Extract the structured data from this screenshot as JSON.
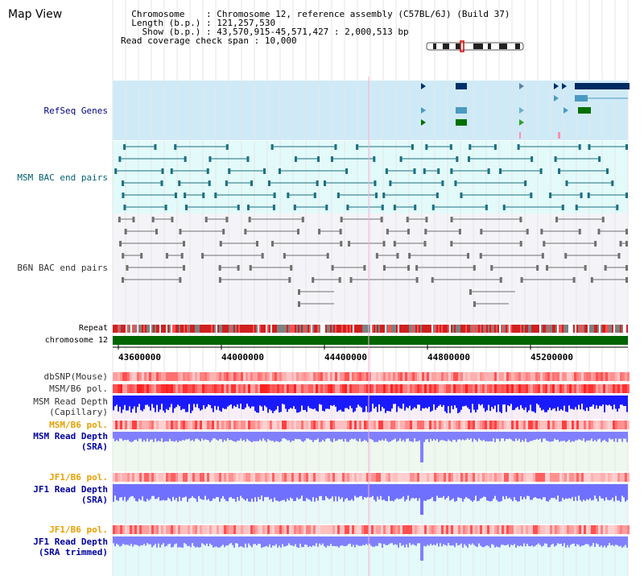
{
  "page": {
    "title": "Map View"
  },
  "header": {
    "chromosome_label": "Chromosome",
    "chromosome_value": "Chromosome 12, reference assembly (C57BL/6J) (Build 37)",
    "length_label": "Length (b.p.)",
    "length_value": "121,257,530",
    "show_label": "Show (b.p.)",
    "show_value": "43,570,915-45,571,427 : 2,000,513 bp",
    "coverage_label": "Read coverage check span",
    "coverage_value": "10,000"
  },
  "tracks": {
    "refseq": "RefSeq Genes",
    "msm_bac": "MSM BAC end pairs",
    "b6n_bac": "B6N BAC end pairs",
    "repeat": "Repeat",
    "chromosome": "chromosome 12",
    "dbsnp": "dbSNP(Mouse)",
    "msm_b6_pol_1": "MSM/B6 pol.",
    "msm_read_depth_cap_1": "MSM Read Depth",
    "msm_read_depth_cap_2": "(Capillary)",
    "msm_b6_pol_2": "MSM/B6 pol.",
    "msm_read_depth_sra_1": "MSM Read Depth",
    "msm_read_depth_sra_2": "(SRA)",
    "jf1_b6_pol_1": "JF1/B6 pol.",
    "jf1_read_depth_sra_1": "JF1 Read Depth",
    "jf1_read_depth_sra_2": "(SRA)",
    "jf1_b6_pol_2": "JF1/B6 pol.",
    "jf1_read_depth_trim_1": "JF1 Read Depth",
    "jf1_read_depth_trim_2": "(SRA trimmed)"
  },
  "axis": {
    "ticks": [
      "43600000",
      "44000000",
      "44400000",
      "44800000",
      "45200000"
    ]
  },
  "colors": {
    "refseq_bg": "#cfeaf7",
    "msm_bac_bg": "#e3fafa",
    "b6n_bac_bg": "#f1f1f8",
    "chromosome_bar": "#006400",
    "depth_blue": "#1a1aff",
    "depth_light": "#8080ff"
  }
}
